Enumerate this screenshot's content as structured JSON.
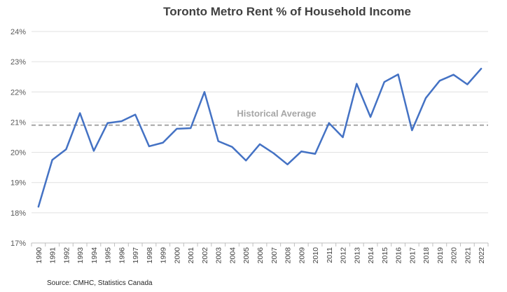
{
  "chart_data": {
    "type": "line",
    "title": "Toronto Metro Rent % of Household Income",
    "xlabel": "",
    "ylabel": "",
    "ylim": [
      17,
      24
    ],
    "y_ticks": [
      "17%",
      "18%",
      "19%",
      "20%",
      "21%",
      "22%",
      "23%",
      "24%"
    ],
    "grid": "horizontal",
    "legend": "none",
    "categories": [
      "1990",
      "1991",
      "1992",
      "1993",
      "1994",
      "1995",
      "1996",
      "1997",
      "1998",
      "1999",
      "2000",
      "2001",
      "2002",
      "2003",
      "2004",
      "2005",
      "2006",
      "2007",
      "2008",
      "2009",
      "2010",
      "2011",
      "2012",
      "2013",
      "2014",
      "2015",
      "2016",
      "2017",
      "2018",
      "2019",
      "2020",
      "2021",
      "2022"
    ],
    "series": [
      {
        "color": "#4472c4",
        "values": [
          18.2,
          19.75,
          20.1,
          21.3,
          20.05,
          20.97,
          21.03,
          21.25,
          20.2,
          20.32,
          20.78,
          20.8,
          22.0,
          20.37,
          20.18,
          19.73,
          20.27,
          19.97,
          19.6,
          20.03,
          19.95,
          20.97,
          20.5,
          22.27,
          21.17,
          22.33,
          22.58,
          20.73,
          21.8,
          22.37,
          22.57,
          22.25,
          22.77
        ]
      }
    ],
    "reference_line": {
      "label": "Historical Average",
      "value": 20.9,
      "color": "#a6a6a6"
    },
    "source": "Source: CMHC, Statistics Canada"
  }
}
